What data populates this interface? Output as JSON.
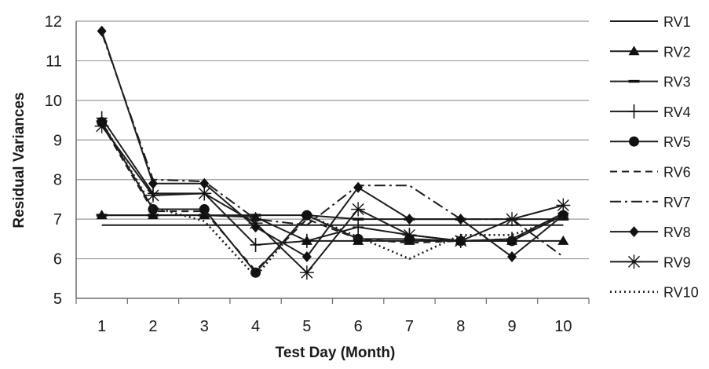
{
  "chart_data": {
    "type": "line",
    "title": "",
    "xlabel": "Test Day (Month)",
    "ylabel": "Residual Variances",
    "categories": [
      "1",
      "2",
      "3",
      "4",
      "5",
      "6",
      "7",
      "8",
      "9",
      "10"
    ],
    "ylim": [
      5,
      12
    ],
    "yticks": [
      "5",
      "6",
      "7",
      "8",
      "9",
      "10",
      "11",
      "12"
    ],
    "grid": "horizontal",
    "legend_position": "right",
    "series": [
      {
        "name": "RV1",
        "marker": "none",
        "dash": "solid",
        "values": [
          6.85,
          6.85,
          6.85,
          6.85,
          6.85,
          6.85,
          6.85,
          6.85,
          6.85,
          6.85
        ]
      },
      {
        "name": "RV2",
        "marker": "triangle",
        "dash": "solid",
        "values": [
          7.1,
          7.1,
          7.1,
          7.05,
          6.45,
          6.45,
          6.45,
          6.45,
          6.45,
          6.45
        ]
      },
      {
        "name": "RV3",
        "marker": "dash",
        "dash": "solid",
        "values": [
          7.1,
          7.1,
          7.1,
          7.1,
          7.1,
          7.0,
          7.0,
          7.0,
          7.0,
          7.0
        ]
      },
      {
        "name": "RV4",
        "marker": "plus",
        "dash": "solid",
        "values": [
          9.55,
          7.65,
          7.65,
          6.35,
          6.45,
          6.8,
          6.6,
          6.45,
          6.5,
          7.15
        ]
      },
      {
        "name": "RV5",
        "marker": "circle",
        "dash": "solid",
        "values": [
          9.45,
          7.25,
          7.25,
          5.65,
          7.1,
          6.5,
          6.5,
          6.45,
          6.45,
          7.1
        ]
      },
      {
        "name": "RV6",
        "marker": "none",
        "dash": "dashed",
        "values": [
          9.4,
          7.2,
          7.2,
          5.7,
          7.0,
          6.5,
          6.4,
          6.45,
          6.5,
          7.1
        ]
      },
      {
        "name": "RV7",
        "marker": "none",
        "dash": "dashdot",
        "values": [
          11.7,
          8.0,
          7.95,
          7.0,
          6.85,
          7.85,
          7.85,
          7.0,
          7.0,
          6.05
        ]
      },
      {
        "name": "RV8",
        "marker": "diamond",
        "dash": "solid",
        "values": [
          11.75,
          7.9,
          7.9,
          6.8,
          6.05,
          7.8,
          7.0,
          7.0,
          6.05,
          7.1
        ]
      },
      {
        "name": "RV9",
        "marker": "asterisk",
        "dash": "solid",
        "values": [
          9.35,
          7.6,
          7.65,
          6.9,
          5.65,
          7.25,
          6.6,
          6.45,
          7.0,
          7.35
        ]
      },
      {
        "name": "RV10",
        "marker": "none",
        "dash": "dotted",
        "values": [
          9.45,
          7.3,
          6.95,
          5.55,
          7.1,
          6.55,
          6.0,
          6.6,
          6.6,
          7.05
        ]
      }
    ]
  }
}
